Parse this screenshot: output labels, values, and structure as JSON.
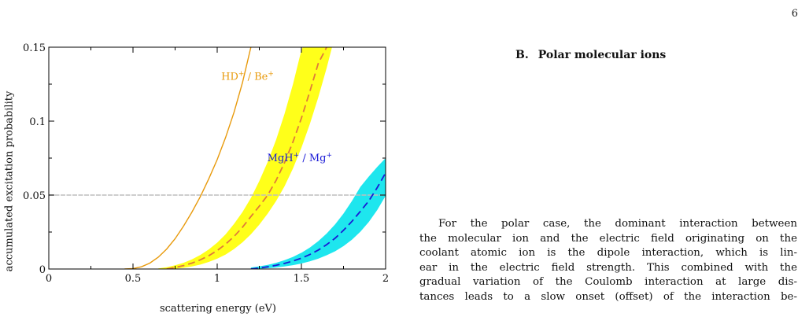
{
  "page": {
    "number": "6"
  },
  "figure": {
    "chart_data": {
      "type": "line",
      "title": "",
      "xlabel": "scattering energy (eV)",
      "ylabel": "accumulated excitation probability",
      "xlim": [
        0,
        2
      ],
      "ylim": [
        0,
        0.15
      ],
      "x_ticks": [
        "0",
        "0.5",
        "1",
        "1.5",
        "2"
      ],
      "y_ticks": [
        "0",
        "0.05",
        "0.1",
        "0.15"
      ],
      "x_tick_values": [
        0,
        0.5,
        1,
        1.5,
        2
      ],
      "y_tick_values": [
        0,
        0.05,
        0.1,
        0.15
      ],
      "grid": false,
      "reference_line": {
        "y": 0.05,
        "style": "dashed",
        "color": "#bdbdbd"
      },
      "annotations": [
        {
          "text": "HD",
          "sup": "+",
          "sep": " / Be",
          "sup2": "+",
          "color": "#e89a0c",
          "at": [
            1.18,
            0.128
          ]
        },
        {
          "text": "MgH",
          "sup": "+",
          "sep": " / Mg",
          "sup2": "+",
          "color": "#1a1ad6",
          "at": [
            1.49,
            0.073
          ]
        }
      ],
      "series": [
        {
          "kind": "line",
          "color": "#e89a0c",
          "x": [
            0.45,
            0.5,
            0.55,
            0.6,
            0.65,
            0.7,
            0.75,
            0.8,
            0.85,
            0.9,
            0.95,
            1.0,
            1.05,
            1.1,
            1.15,
            1.2
          ],
          "y": [
            0.0,
            0.0003,
            0.0015,
            0.004,
            0.008,
            0.0135,
            0.0205,
            0.029,
            0.0385,
            0.049,
            0.061,
            0.074,
            0.089,
            0.106,
            0.126,
            0.15
          ]
        },
        {
          "kind": "band",
          "color": "#ffff1a",
          "x": [
            0.65,
            0.7,
            0.75,
            0.8,
            0.85,
            0.9,
            0.95,
            1.0,
            1.05,
            1.1,
            1.15,
            1.2,
            1.25,
            1.3,
            1.35,
            1.4,
            1.45,
            1.5,
            1.55,
            1.6,
            1.65,
            1.7
          ],
          "lower": [
            0.0,
            0.0,
            0.0002,
            0.0008,
            0.0017,
            0.003,
            0.0048,
            0.007,
            0.0098,
            0.0135,
            0.018,
            0.0235,
            0.03,
            0.0375,
            0.046,
            0.056,
            0.068,
            0.082,
            0.098,
            0.116,
            0.136,
            0.158
          ],
          "upper": [
            0.0004,
            0.0012,
            0.0025,
            0.0042,
            0.0065,
            0.0095,
            0.0132,
            0.0178,
            0.0235,
            0.0305,
            0.0385,
            0.048,
            0.0595,
            0.0725,
            0.0875,
            0.105,
            0.125,
            0.148,
            0.16,
            0.16,
            0.16,
            0.16
          ]
        },
        {
          "kind": "dashed",
          "color": "#e07a3a",
          "x": [
            0.7,
            0.75,
            0.8,
            0.85,
            0.9,
            0.95,
            1.0,
            1.05,
            1.1,
            1.15,
            1.2,
            1.25,
            1.3,
            1.35,
            1.4,
            1.45,
            1.5,
            1.55,
            1.6,
            1.65
          ],
          "y": [
            0.0,
            0.001,
            0.0023,
            0.004,
            0.0062,
            0.009,
            0.0125,
            0.0168,
            0.022,
            0.0282,
            0.0355,
            0.0425,
            0.05,
            0.06,
            0.072,
            0.086,
            0.102,
            0.12,
            0.139,
            0.15
          ]
        },
        {
          "kind": "band",
          "color": "#1ee6ee",
          "x": [
            1.2,
            1.25,
            1.3,
            1.35,
            1.4,
            1.45,
            1.5,
            1.55,
            1.6,
            1.65,
            1.7,
            1.75,
            1.8,
            1.85,
            1.9,
            1.95,
            2.0
          ],
          "lower": [
            0.0,
            0.0002,
            0.0005,
            0.001,
            0.0017,
            0.0026,
            0.0037,
            0.0052,
            0.007,
            0.0093,
            0.012,
            0.0155,
            0.0198,
            0.0252,
            0.0318,
            0.0398,
            0.0495
          ],
          "upper": [
            0.001,
            0.0018,
            0.0028,
            0.0042,
            0.006,
            0.0082,
            0.011,
            0.0145,
            0.0188,
            0.024,
            0.0302,
            0.0375,
            0.046,
            0.0555,
            0.0625,
            0.069,
            0.075
          ]
        },
        {
          "kind": "dashed",
          "color": "#1a1ad6",
          "x": [
            1.2,
            1.25,
            1.3,
            1.35,
            1.4,
            1.45,
            1.5,
            1.55,
            1.6,
            1.65,
            1.7,
            1.75,
            1.8,
            1.85,
            1.9,
            1.95,
            2.0
          ],
          "y": [
            0.0,
            0.0007,
            0.0015,
            0.0025,
            0.0038,
            0.0054,
            0.0073,
            0.0098,
            0.0128,
            0.0165,
            0.0208,
            0.0262,
            0.0322,
            0.039,
            0.046,
            0.055,
            0.065
          ]
        }
      ]
    }
  },
  "section": {
    "number": "B.",
    "title": "Polar molecular ions"
  },
  "paragraph": {
    "lines": [
      "For the polar case, the dominant interaction between",
      "the molecular ion and the electric field originating on the",
      "coolant atomic ion is the dipole interaction, which is lin-",
      "ear in the electric field strength. This combined with the",
      "gradual variation of the Coulomb interaction at large dis-",
      "tances leads to a slow onset (offset) of the interaction be-"
    ]
  }
}
